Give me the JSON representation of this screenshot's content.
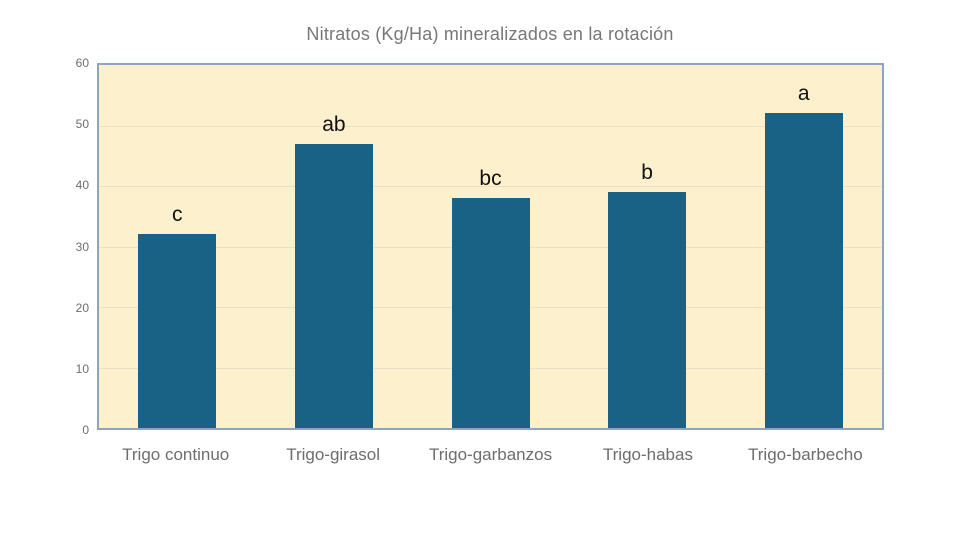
{
  "chart_data": {
    "type": "bar",
    "title": "Nitratos (Kg/Ha) mineralizados en la rotación",
    "categories": [
      "Trigo continuo",
      "Trigo-girasol",
      "Trigo-garbanzos",
      "Trigo-habas",
      "Trigo-barbecho"
    ],
    "values": [
      32,
      47,
      38,
      39,
      52
    ],
    "bar_labels": [
      "c",
      "ab",
      "bc",
      "b",
      "a"
    ],
    "xlabel": "",
    "ylabel": "",
    "ylim": [
      0,
      60
    ],
    "yticks": [
      0,
      10,
      20,
      30,
      40,
      50,
      60
    ],
    "grid": true,
    "legend_position": "none",
    "colors": {
      "bar": "#1a6186",
      "plot_background": "#fdf0cd",
      "plot_border": "#8ca6bf",
      "gridline": "#eadfc8",
      "title_text": "#777777",
      "axis_text": "#6d6d6d",
      "bar_label_text": "#111111",
      "page_background": "#ffffff"
    }
  }
}
